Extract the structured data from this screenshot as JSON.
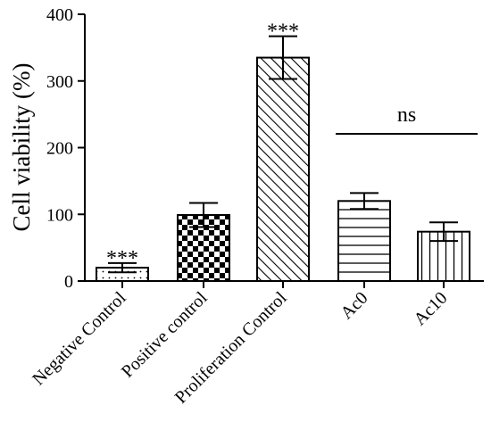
{
  "chart_data": {
    "type": "bar",
    "ylabel": "Cell viability (%)",
    "xlabel": "",
    "ylim": [
      0,
      400
    ],
    "yticks": [
      0,
      100,
      200,
      300,
      400
    ],
    "categories": [
      "Negative Control",
      "Positive control",
      "Proliferation Control",
      "Ac0",
      "Ac10"
    ],
    "values": [
      20,
      99,
      335,
      120,
      74
    ],
    "errors": [
      7,
      18,
      32,
      12,
      14
    ],
    "patterns": [
      "dots",
      "checkerboard",
      "diagonal",
      "horizontal",
      "vertical"
    ],
    "annotations": [
      {
        "category": "Negative Control",
        "text": "***"
      },
      {
        "category": "Proliferation Control",
        "text": "***"
      }
    ],
    "comparison": {
      "from": "Ac0",
      "to": "Ac10",
      "text": "ns"
    },
    "grid": false,
    "legend": "none"
  }
}
